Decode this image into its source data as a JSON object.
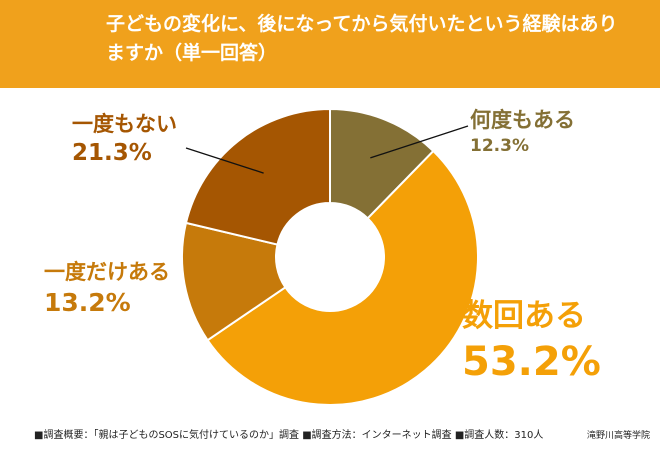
{
  "header": {
    "title": "子どもの変化に、後になってから気付いたという経験はありますか（単一回答）"
  },
  "chart_data": {
    "type": "pie",
    "title": "子どもの変化に、後になってから気付いたという経験はありますか（単一回答）",
    "slices": [
      {
        "label": "何度もある",
        "value": 12.3,
        "display": "12.3%",
        "color": "#847035"
      },
      {
        "label": "数回ある",
        "value": 53.2,
        "display": "53.2%",
        "color": "#f4a007"
      },
      {
        "label": "一度だけある",
        "value": 13.2,
        "display": "13.2%",
        "color": "#c67a0b"
      },
      {
        "label": "一度もない",
        "value": 21.3,
        "display": "21.3%",
        "color": "#a55602"
      }
    ]
  },
  "footer": {
    "text": "■調査概要：「親は子どものSOSに気付けているのか」調査 ■調査方法：インターネット調査 ■調査人数：310人",
    "credit": "滝野川高等学院"
  }
}
